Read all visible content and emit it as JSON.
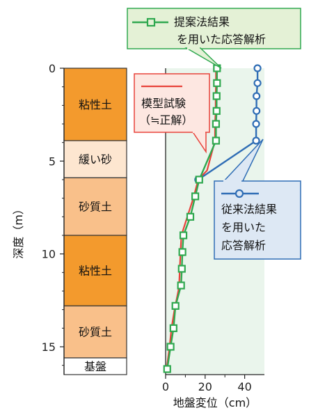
{
  "chart_data": {
    "type": "line",
    "xlabel": "地盤変位（cm）",
    "ylabel": "深度（m）",
    "xlim": [
      0,
      50
    ],
    "ylim": [
      0,
      16.5
    ],
    "y_inverted": true,
    "x_ticks": [
      "0",
      "20",
      "40"
    ],
    "y_ticks": [
      "0",
      "5",
      "10",
      "15"
    ],
    "grid": false,
    "series": [
      {
        "name": "模型試験（≒正解）",
        "color": "#e8423a",
        "marker": "none",
        "points": [
          [
            25.5,
            0
          ],
          [
            25.5,
            0.8
          ],
          [
            25.3,
            1.5
          ],
          [
            25.3,
            2.3
          ],
          [
            25.0,
            3.0
          ],
          [
            25.0,
            3.9
          ],
          [
            21.0,
            5.5
          ],
          [
            16.5,
            6.0
          ],
          [
            14.0,
            7.0
          ],
          [
            11.0,
            8.0
          ],
          [
            8.0,
            9.0
          ],
          [
            7.5,
            10.0
          ],
          [
            7.2,
            10.8
          ],
          [
            6.8,
            11.8
          ],
          [
            4.5,
            13.0
          ],
          [
            3.0,
            14.0
          ],
          [
            2.0,
            15.0
          ],
          [
            0.5,
            16.2
          ]
        ]
      },
      {
        "name": "提案法結果を用いた応答解析",
        "color": "#2fa84f",
        "marker": "square",
        "points": [
          [
            26.0,
            0
          ],
          [
            26.0,
            0.8
          ],
          [
            25.8,
            1.5
          ],
          [
            25.8,
            2.3
          ],
          [
            25.5,
            3.0
          ],
          [
            25.5,
            3.9
          ],
          [
            17.0,
            6.0
          ],
          [
            15.0,
            6.9
          ],
          [
            12.5,
            8.0
          ],
          [
            9.0,
            9.0
          ],
          [
            8.5,
            9.9
          ],
          [
            8.2,
            10.8
          ],
          [
            7.8,
            11.7
          ],
          [
            5.0,
            12.8
          ],
          [
            4.0,
            14.0
          ],
          [
            2.5,
            15.0
          ],
          [
            0.8,
            16.2
          ]
        ]
      },
      {
        "name": "従来法結果を用いた応答解析",
        "color": "#2f6db5",
        "marker": "circle",
        "points": [
          [
            46.5,
            0
          ],
          [
            46.5,
            0.8
          ],
          [
            46.0,
            1.5
          ],
          [
            46.0,
            2.3
          ],
          [
            45.8,
            3.0
          ],
          [
            45.8,
            3.9
          ],
          [
            16.5,
            6.0
          ]
        ]
      }
    ],
    "soil_layers": [
      {
        "label": "粘性土",
        "top": 0,
        "bottom": 3.9,
        "color": "#f39a2d"
      },
      {
        "label": "緩い砂",
        "top": 3.9,
        "bottom": 5.9,
        "color": "#fde6d0"
      },
      {
        "label": "砂質土",
        "top": 5.9,
        "bottom": 9.0,
        "color": "#f9c08a"
      },
      {
        "label": "粘性土",
        "top": 9.0,
        "bottom": 12.8,
        "color": "#f39a2d"
      },
      {
        "label": "砂質土",
        "top": 12.8,
        "bottom": 15.6,
        "color": "#f9c08a"
      },
      {
        "label": "基盤",
        "top": 15.6,
        "bottom": 16.6,
        "color": "#ffffff"
      }
    ],
    "callouts": {
      "model": [
        "模型試験",
        "（≒正解）"
      ],
      "proposed": [
        "提案法結果",
        "を用いた応答解析"
      ],
      "conventional": [
        "従来法結果",
        "を用いた",
        "応答解析"
      ]
    },
    "colors": {
      "plot_bg": "#eaf5ec",
      "proposed_box_bg": "#e4f1d6",
      "model_box_bg": "#fde7e1",
      "conventional_box_bg": "#dde8f4"
    }
  }
}
